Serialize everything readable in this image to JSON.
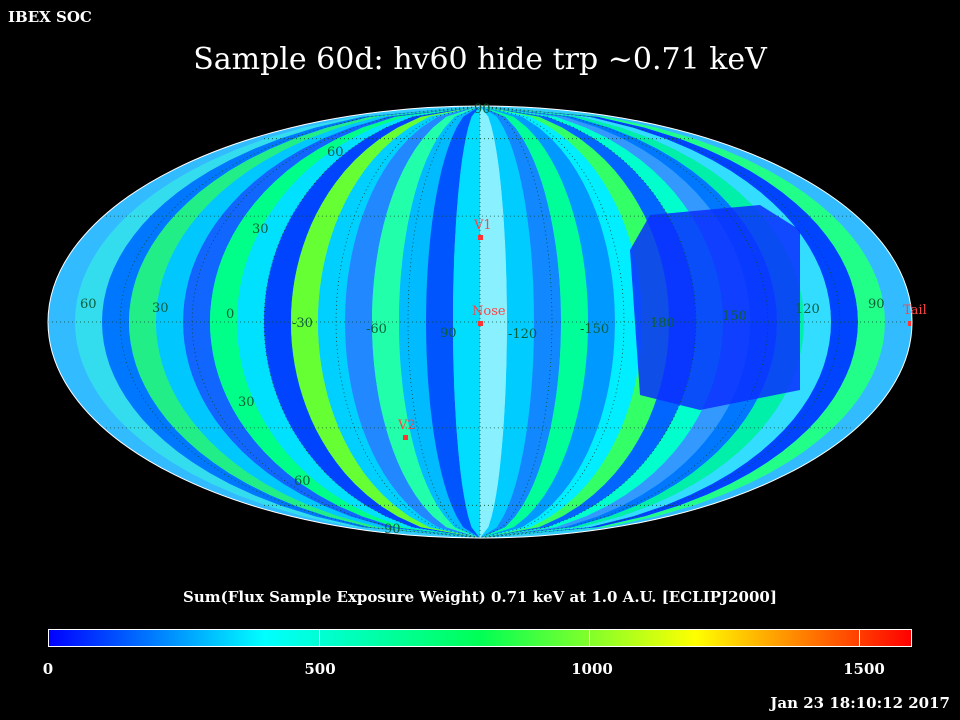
{
  "header": {
    "corner_label": "IBEX SOC",
    "title": "Sample 60d: hv60 hide trp ~0.71 keV"
  },
  "map": {
    "projection": "aitoff",
    "grid_labels_lat": [
      "90",
      "60",
      "30",
      "30",
      "60",
      "90"
    ],
    "grid_labels_lon": [
      "60",
      "30",
      "0",
      "-30",
      "-60",
      "90",
      "-120",
      "-150",
      "180",
      "150",
      "120",
      "90"
    ],
    "markers": [
      {
        "label": "V1",
        "color": "#ff3333"
      },
      {
        "label": "Nose",
        "color": "#ff3333"
      },
      {
        "label": "V2",
        "color": "#ff3333"
      },
      {
        "label": "Tail",
        "color": "#ff3333"
      }
    ],
    "band_colors": [
      "#33bbff",
      "#33ddee",
      "#0077ff",
      "#22ee88",
      "#00c8ff",
      "#1166ff",
      "#00ff88",
      "#00e0ff",
      "#0044ff",
      "#66ff33",
      "#00d0ff",
      "#2288ff",
      "#22ffaa",
      "#00bbff",
      "#0055ff",
      "#00ddff",
      "#88f0ff",
      "#00ccff",
      "#1188ff",
      "#00ff99",
      "#0099ff",
      "#00eeff",
      "#33ff66",
      "#0066ff",
      "#00ffcc",
      "#3399ff",
      "#0077ff",
      "#00f0aa",
      "#33ddff",
      "#0044ff",
      "#22ff88",
      "#33bbff"
    ]
  },
  "colorbar": {
    "title": "Sum(Flux Sample Exposure Weight)  0.71 keV at 1.0 A.U. [ECLIPJ2000]",
    "min": 0,
    "max": 1600,
    "ticks": [
      "0",
      "500",
      "1000",
      "1500"
    ],
    "colors": [
      "#0000ff",
      "#00ffff",
      "#00ff55",
      "#ffff00",
      "#ff0000"
    ]
  },
  "footer": {
    "timestamp": "Jan 23 18:10:12 2017"
  }
}
